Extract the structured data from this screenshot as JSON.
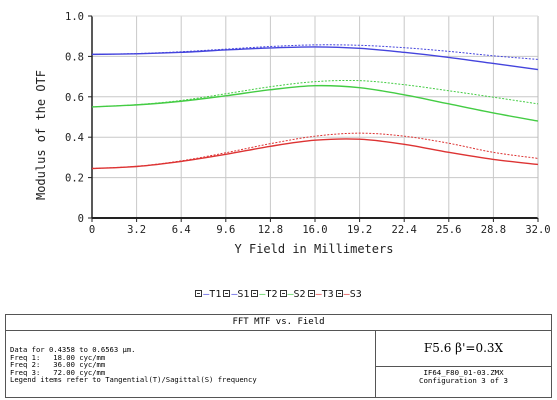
{
  "chart_data": {
    "type": "line",
    "title": "FFT MTF vs. Field",
    "xlabel": "Y Field in Millimeters",
    "ylabel": "Modulus of the OTF",
    "xlim": [
      0,
      32.0
    ],
    "ylim": [
      0,
      1.0
    ],
    "x_ticks": [
      "0",
      "3.2",
      "6.4",
      "9.6",
      "12.8",
      "16.0",
      "19.2",
      "22.4",
      "25.6",
      "28.8",
      "32.0"
    ],
    "y_ticks": [
      "0",
      "0.2",
      "0.4",
      "0.6",
      "0.8",
      "1.0"
    ],
    "grid": true,
    "x": [
      0,
      3.2,
      6.4,
      9.6,
      12.8,
      16.0,
      19.2,
      22.4,
      25.6,
      28.8,
      32.0
    ],
    "series": [
      {
        "name": "T1",
        "color": "#4444dd",
        "dashed": false,
        "values": [
          0.81,
          0.813,
          0.82,
          0.832,
          0.842,
          0.847,
          0.84,
          0.82,
          0.795,
          0.765,
          0.735
        ]
      },
      {
        "name": "S1",
        "color": "#4444dd",
        "dashed": true,
        "values": [
          0.81,
          0.814,
          0.823,
          0.836,
          0.849,
          0.857,
          0.855,
          0.843,
          0.825,
          0.803,
          0.785
        ]
      },
      {
        "name": "T2",
        "color": "#44cc44",
        "dashed": false,
        "values": [
          0.55,
          0.56,
          0.578,
          0.605,
          0.635,
          0.655,
          0.645,
          0.61,
          0.565,
          0.52,
          0.48
        ]
      },
      {
        "name": "S2",
        "color": "#44cc44",
        "dashed": true,
        "values": [
          0.55,
          0.561,
          0.582,
          0.615,
          0.65,
          0.675,
          0.68,
          0.66,
          0.63,
          0.598,
          0.565
        ]
      },
      {
        "name": "T3",
        "color": "#dd3333",
        "dashed": false,
        "values": [
          0.245,
          0.255,
          0.28,
          0.315,
          0.355,
          0.385,
          0.39,
          0.365,
          0.325,
          0.29,
          0.265
        ]
      },
      {
        "name": "S3",
        "color": "#dd3333",
        "dashed": true,
        "values": [
          0.245,
          0.256,
          0.283,
          0.323,
          0.368,
          0.405,
          0.42,
          0.405,
          0.37,
          0.325,
          0.295
        ]
      }
    ]
  },
  "legend": [
    {
      "label": "T1",
      "color": "#4444dd"
    },
    {
      "label": "S1",
      "color": "#4444dd"
    },
    {
      "label": "T2",
      "color": "#44cc44"
    },
    {
      "label": "S2",
      "color": "#44cc44"
    },
    {
      "label": "T3",
      "color": "#dd3333"
    },
    {
      "label": "S3",
      "color": "#dd3333"
    }
  ],
  "info": {
    "title": "FFT MTF vs. Field",
    "data_range": "Data for 0.4358 to 0.6563 µm.",
    "freq1": "Freq 1:   18.00 cyc/mm",
    "freq2": "Freq 2:   36.00 cyc/mm",
    "freq3": "Freq 3:   72.00 cyc/mm",
    "legend_note": "Legend items refer to Tangential(T)/Sagittal(S) frequency",
    "spec": "F5.6    β'=0.3X",
    "file": "IF64_F80_01-03.ZMX",
    "config": "Configuration 3 of 3"
  }
}
